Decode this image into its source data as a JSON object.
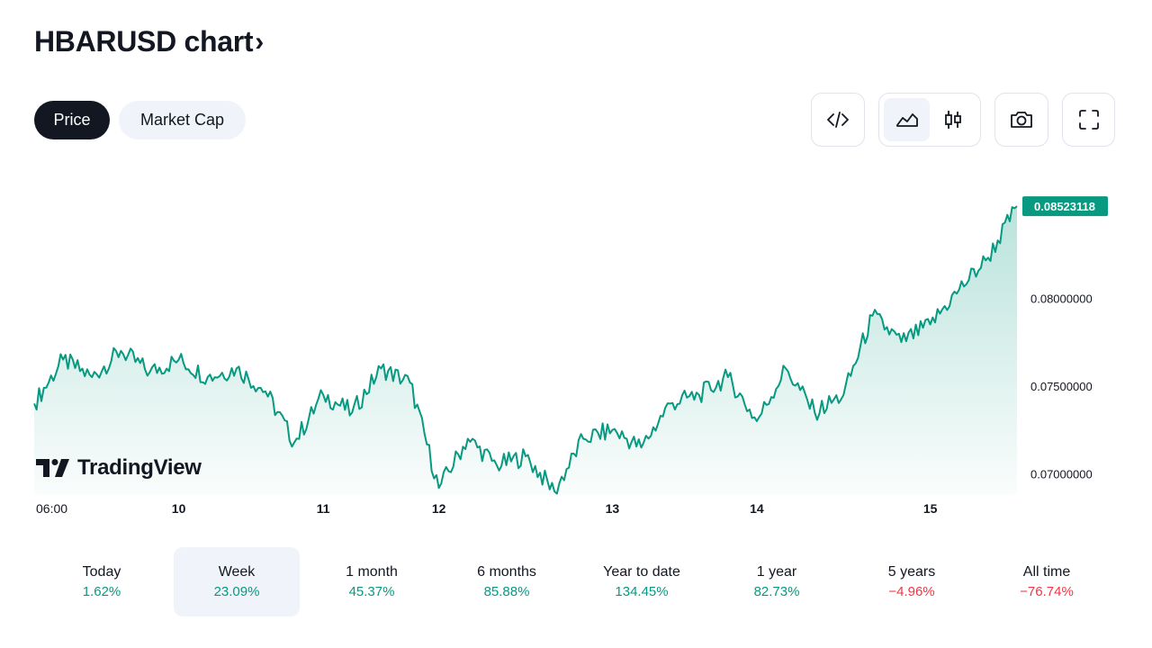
{
  "header": {
    "title": "HBARUSD chart",
    "chevron": "›"
  },
  "tabs": [
    {
      "label": "Price",
      "active": true
    },
    {
      "label": "Market Cap",
      "active": false
    }
  ],
  "toolbar": {
    "icons": [
      "embed-code-icon",
      "area-chart-icon",
      "candles-chart-icon",
      "camera-icon",
      "fullscreen-icon"
    ],
    "selected": "area-chart-icon"
  },
  "brand": {
    "name": "TradingView"
  },
  "colors": {
    "up": "#089981",
    "down": "#f23645",
    "line": "#089981",
    "dark": "#131722",
    "price_label_bg": "#089981"
  },
  "chart_data": {
    "type": "area",
    "series": [
      {
        "x": [
          "06:00",
          "",
          "",
          "",
          "",
          "10",
          "",
          "",
          "",
          "",
          "11",
          "",
          "",
          "",
          "12",
          "",
          "",
          "",
          "",
          "",
          "13",
          "",
          "",
          "",
          "",
          "14",
          "",
          "",
          "",
          "",
          "",
          "15",
          "",
          "",
          ""
        ],
        "values": [
          0.074,
          0.0765,
          0.0755,
          0.077,
          0.0758,
          0.0765,
          0.0755,
          0.076,
          0.0747,
          0.0718,
          0.0745,
          0.0735,
          0.076,
          0.0752,
          0.0692,
          0.072,
          0.0705,
          0.071,
          0.069,
          0.072,
          0.0725,
          0.0715,
          0.074,
          0.0745,
          0.0755,
          0.073,
          0.076,
          0.0735,
          0.0745,
          0.079,
          0.0775,
          0.0785,
          0.0805,
          0.0823,
          0.08523
        ]
      }
    ],
    "x_tick_labels": [
      "06:00",
      "10",
      "11",
      "12",
      "13",
      "14",
      "15"
    ],
    "y_tick_labels": [
      "0.08000000",
      "0.07500000",
      "0.07000000"
    ],
    "y_ticks": [
      0.08,
      0.075,
      0.07
    ],
    "ylim": [
      0.0688,
      0.088
    ],
    "last_price_label": "0.08523118",
    "grid": false
  },
  "periods": [
    {
      "label": "Today",
      "value": "1.62%",
      "dir": "up",
      "selected": false
    },
    {
      "label": "Week",
      "value": "23.09%",
      "dir": "up",
      "selected": true
    },
    {
      "label": "1 month",
      "value": "45.37%",
      "dir": "up",
      "selected": false
    },
    {
      "label": "6 months",
      "value": "85.88%",
      "dir": "up",
      "selected": false
    },
    {
      "label": "Year to date",
      "value": "134.45%",
      "dir": "up",
      "selected": false
    },
    {
      "label": "1 year",
      "value": "82.73%",
      "dir": "up",
      "selected": false
    },
    {
      "label": "5 years",
      "value": "−4.96%",
      "dir": "down",
      "selected": false
    },
    {
      "label": "All time",
      "value": "−76.74%",
      "dir": "down",
      "selected": false
    }
  ]
}
